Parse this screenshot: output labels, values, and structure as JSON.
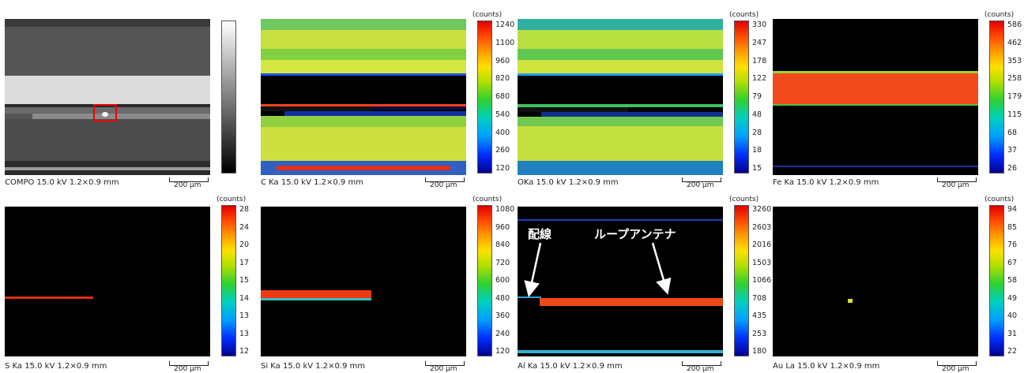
{
  "panels": [
    {
      "caption": "COMPO 15.0 kV 1.2×0.9 mm",
      "scale": "200 μm"
    },
    {
      "caption": "C Ka 15.0 kV 1.2×0.9 mm",
      "scale": "200 μm",
      "unit": "(counts)",
      "colorbar": [
        1240,
        1100,
        960,
        820,
        680,
        540,
        400,
        260,
        120
      ]
    },
    {
      "caption": "OKa 15.0 kV 1.2×0.9 mm",
      "scale": "200 μm",
      "unit": "(counts)",
      "colorbar": [
        330,
        247,
        178,
        122,
        79,
        48,
        28,
        18,
        15
      ]
    },
    {
      "caption": "Fe Ka 15.0 kV 1.2×0.9 mm",
      "scale": "200 μm",
      "unit": "(counts)",
      "colorbar": [
        586,
        462,
        353,
        258,
        179,
        115,
        68,
        37,
        26
      ]
    },
    {
      "caption": "S Ka 15.0 kV 1.2×0.9 mm",
      "scale": "200 μm",
      "unit": "(counts)",
      "colorbar": [
        28,
        24,
        20,
        17,
        15,
        14,
        13,
        13,
        12
      ]
    },
    {
      "caption": "Si Ka 15.0 kV 1.2×0.9 mm",
      "scale": "200 μm",
      "unit": "(counts)",
      "colorbar": [
        1080,
        960,
        840,
        720,
        600,
        480,
        360,
        240,
        120
      ]
    },
    {
      "caption": "Al Ka 15.0 kV 1.2×0.9 mm",
      "scale": "200 μm",
      "unit": "(counts)",
      "colorbar": [
        3260,
        2603,
        2016,
        1503,
        1066,
        708,
        435,
        253,
        180
      ],
      "annotations": [
        "配線",
        "ループアンテナ"
      ]
    },
    {
      "caption": "Au La 15.0 kV 1.2×0.9 mm",
      "scale": "200 μm",
      "unit": "(counts)",
      "colorbar": [
        94,
        85,
        76,
        67,
        58,
        49,
        40,
        31,
        22
      ]
    }
  ]
}
